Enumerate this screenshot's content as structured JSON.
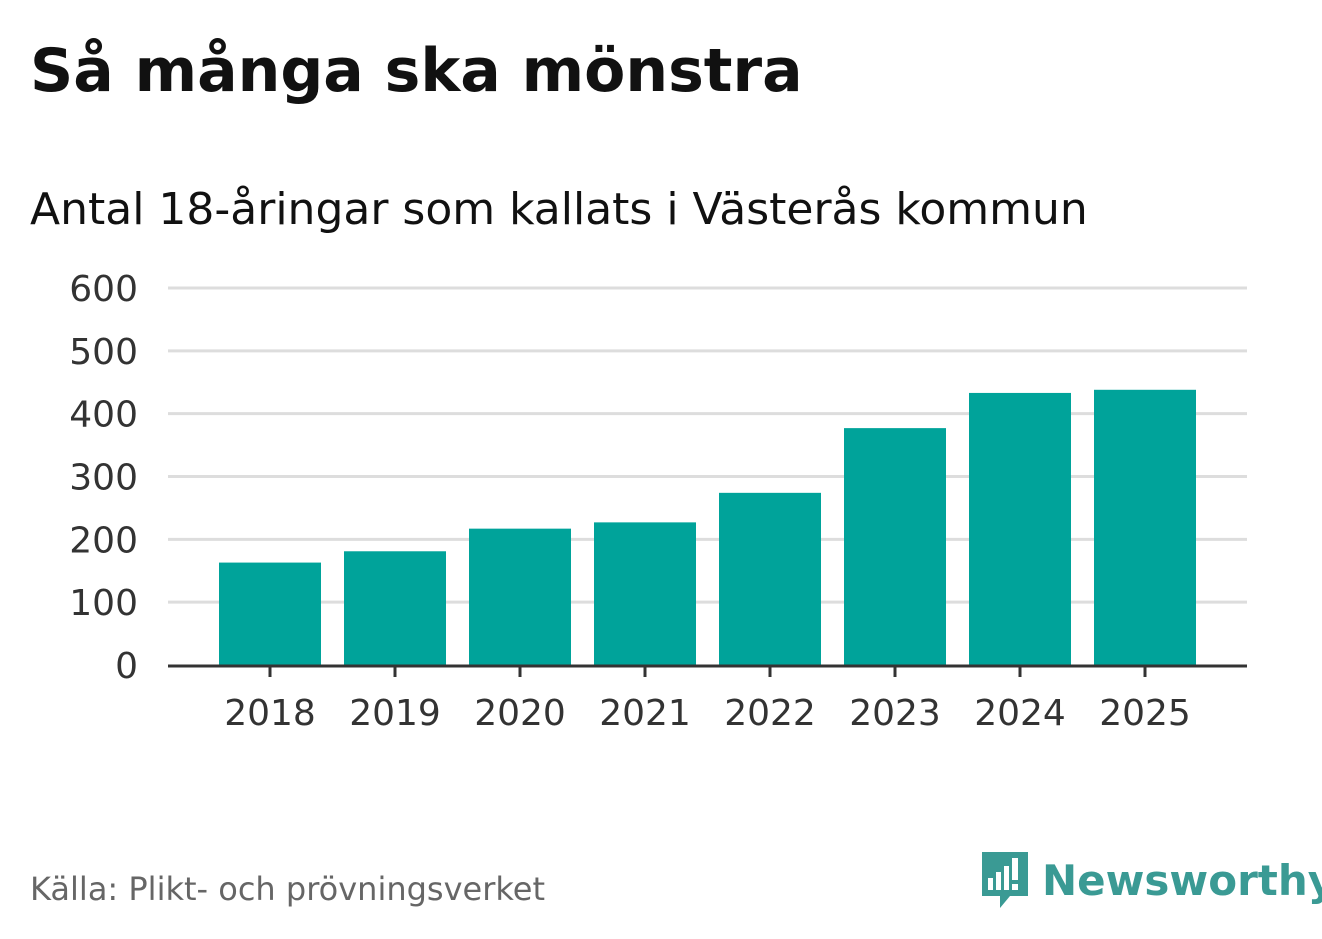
{
  "title": "Så många ska mönstra",
  "subtitle": "Antal 18-åringar som kallats i Västerås kommun",
  "source": "Källa: Plikt- och prövningsverket",
  "brand": {
    "name": "Newsworthy",
    "icon": "newsworthy-logo-icon",
    "color": "#3a9a94"
  },
  "colors": {
    "bar": "#00a39a",
    "grid": "#dddddd",
    "axis": "#333333"
  },
  "chart_data": {
    "type": "bar",
    "title": "Så många ska mönstra",
    "subtitle": "Antal 18-åringar som kallats i Västerås kommun",
    "categories": [
      "2018",
      "2019",
      "2020",
      "2021",
      "2022",
      "2023",
      "2024",
      "2025"
    ],
    "values": [
      163,
      181,
      217,
      227,
      274,
      377,
      433,
      438
    ],
    "xlabel": "",
    "ylabel": "",
    "ylim": [
      0,
      600
    ],
    "yticks": [
      "0",
      "100",
      "200",
      "300",
      "400",
      "500",
      "600"
    ],
    "grid": true,
    "legend": "none"
  }
}
